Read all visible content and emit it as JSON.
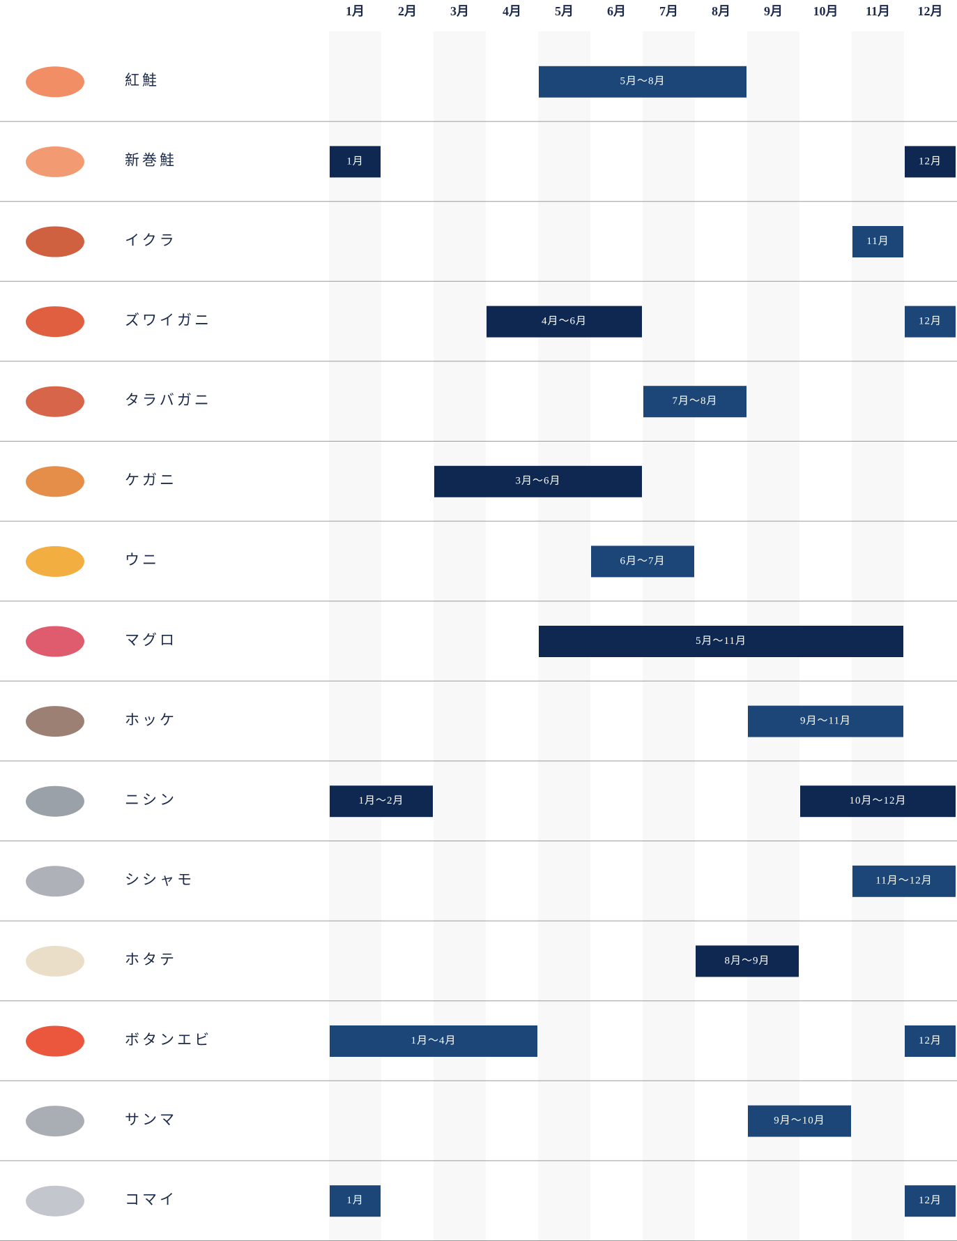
{
  "months": [
    "1月",
    "2月",
    "3月",
    "4月",
    "5月",
    "6月",
    "7月",
    "8月",
    "9月",
    "10月",
    "11月",
    "12月"
  ],
  "rows": [
    {
      "name": "紅鮭",
      "bars": [
        {
          "start": 5,
          "end": 8,
          "label": "5月～8月",
          "color": "#1b4677"
        }
      ]
    },
    {
      "name": "新巻鮭",
      "bars": [
        {
          "start": 1,
          "end": 1,
          "label": "1月",
          "color": "#0e2852"
        },
        {
          "start": 12,
          "end": 12,
          "label": "12月",
          "color": "#0e2852"
        }
      ]
    },
    {
      "name": "イクラ",
      "bars": [
        {
          "start": 11,
          "end": 11,
          "label": "11月",
          "color": "#1b4677"
        }
      ]
    },
    {
      "name": "ズワイガニ",
      "bars": [
        {
          "start": 4,
          "end": 6,
          "label": "4月～6月",
          "color": "#0e2852"
        },
        {
          "start": 12,
          "end": 12,
          "label": "12月",
          "color": "#1b4677"
        }
      ]
    },
    {
      "name": "タラバガニ",
      "bars": [
        {
          "start": 7,
          "end": 8,
          "label": "7月～8月",
          "color": "#1b4677"
        }
      ]
    },
    {
      "name": "ケガニ",
      "bars": [
        {
          "start": 3,
          "end": 6,
          "label": "3月～6月",
          "color": "#0e2852"
        }
      ]
    },
    {
      "name": "ウニ",
      "bars": [
        {
          "start": 6,
          "end": 7,
          "label": "6月～7月",
          "color": "#1b4677"
        }
      ]
    },
    {
      "name": "マグロ",
      "bars": [
        {
          "start": 5,
          "end": 11,
          "label": "5月～11月",
          "color": "#0e2852"
        }
      ]
    },
    {
      "name": "ホッケ",
      "bars": [
        {
          "start": 9,
          "end": 11,
          "label": "9月～11月",
          "color": "#1b4677"
        }
      ]
    },
    {
      "name": "ニシン",
      "bars": [
        {
          "start": 1,
          "end": 2,
          "label": "1月～2月",
          "color": "#0e2852"
        },
        {
          "start": 10,
          "end": 12,
          "label": "10月～12月",
          "color": "#0e2852"
        }
      ]
    },
    {
      "name": "シシャモ",
      "bars": [
        {
          "start": 11,
          "end": 12,
          "label": "11月～12月",
          "color": "#1b4677"
        }
      ]
    },
    {
      "name": "ホタテ",
      "bars": [
        {
          "start": 8,
          "end": 9,
          "label": "8月～9月",
          "color": "#0e2852"
        }
      ]
    },
    {
      "name": "ボタンエビ",
      "bars": [
        {
          "start": 1,
          "end": 4,
          "label": "1月～4月",
          "color": "#1b4677"
        },
        {
          "start": 12,
          "end": 12,
          "label": "12月",
          "color": "#1b4677"
        }
      ]
    },
    {
      "name": "サンマ",
      "bars": [
        {
          "start": 9,
          "end": 10,
          "label": "9月～10月",
          "color": "#1b4677"
        }
      ]
    },
    {
      "name": "コマイ",
      "bars": [
        {
          "start": 1,
          "end": 1,
          "label": "1月",
          "color": "#1b4677"
        },
        {
          "start": 12,
          "end": 12,
          "label": "12月",
          "color": "#1b4677"
        }
      ]
    }
  ]
}
